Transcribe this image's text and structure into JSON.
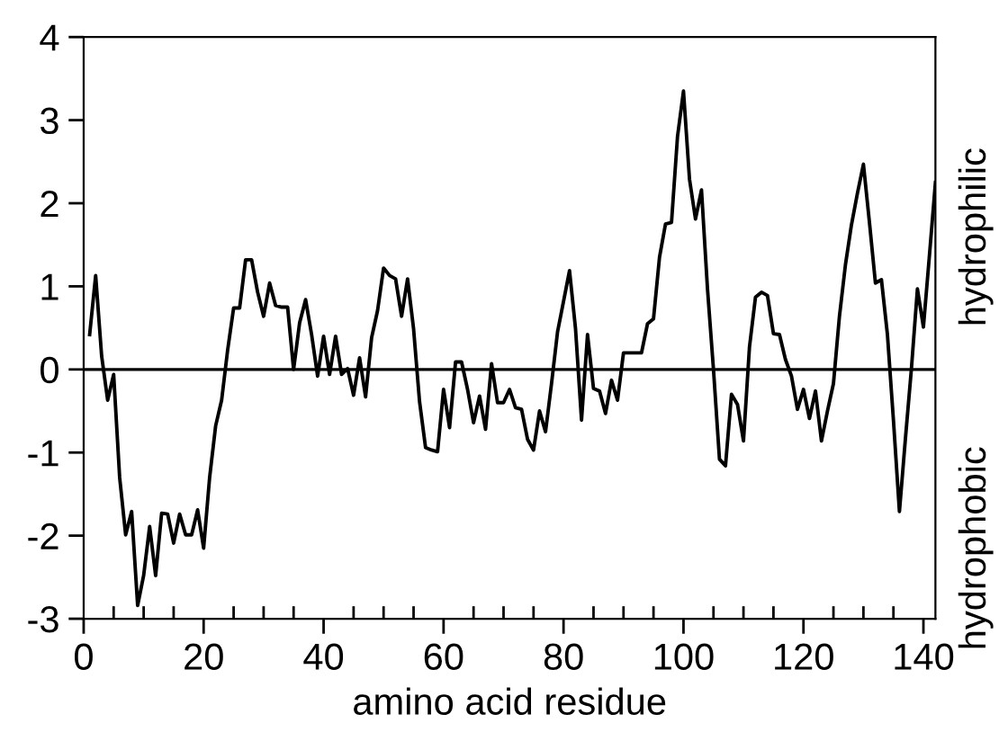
{
  "chart_data": {
    "type": "line",
    "xlabel": "amino acid residue",
    "x": [
      1,
      2,
      3,
      4,
      5,
      6,
      7,
      8,
      9,
      10,
      11,
      12,
      13,
      14,
      15,
      16,
      17,
      18,
      19,
      20,
      21,
      22,
      23,
      24,
      25,
      26,
      27,
      28,
      29,
      30,
      31,
      32,
      33,
      34,
      35,
      36,
      37,
      38,
      39,
      40,
      41,
      42,
      43,
      44,
      45,
      46,
      47,
      48,
      49,
      50,
      51,
      52,
      53,
      54,
      55,
      56,
      57,
      58,
      59,
      60,
      61,
      62,
      63,
      64,
      65,
      66,
      67,
      68,
      69,
      70,
      71,
      72,
      73,
      74,
      75,
      76,
      77,
      78,
      79,
      80,
      81,
      82,
      83,
      84,
      85,
      86,
      87,
      88,
      89,
      90,
      91,
      92,
      93,
      94,
      95,
      96,
      97,
      98,
      99,
      100,
      101,
      102,
      103,
      104,
      105,
      106,
      107,
      108,
      109,
      110,
      111,
      112,
      113,
      114,
      115,
      116,
      117,
      118,
      119,
      120,
      121,
      122,
      123,
      124,
      125,
      126,
      127,
      128,
      129,
      130,
      131,
      132,
      133,
      134,
      135,
      136,
      137,
      138,
      139,
      140,
      141,
      142
    ],
    "series": [
      {
        "color": "#000000",
        "values": [
          0.42,
          1.13,
          0.16,
          -0.37,
          -0.06,
          -1.3,
          -1.99,
          -1.71,
          -2.84,
          -2.48,
          -1.89,
          -2.48,
          -1.73,
          -1.74,
          -2.09,
          -1.74,
          -1.99,
          -1.99,
          -1.69,
          -2.15,
          -1.3,
          -0.68,
          -0.37,
          0.23,
          0.74,
          0.74,
          1.32,
          1.32,
          0.93,
          0.64,
          1.04,
          0.77,
          0.75,
          0.75,
          0.0,
          0.56,
          0.84,
          0.42,
          -0.08,
          0.4,
          -0.06,
          0.4,
          -0.06,
          0.01,
          -0.31,
          0.14,
          -0.33,
          0.38,
          0.71,
          1.22,
          1.13,
          1.09,
          0.64,
          1.09,
          0.49,
          -0.39,
          -0.94,
          -0.97,
          -0.99,
          -0.24,
          -0.7,
          0.09,
          0.09,
          -0.24,
          -0.64,
          -0.32,
          -0.72,
          0.07,
          -0.4,
          -0.4,
          -0.24,
          -0.46,
          -0.48,
          -0.84,
          -0.97,
          -0.5,
          -0.75,
          -0.17,
          0.45,
          0.82,
          1.19,
          0.49,
          -0.61,
          0.42,
          -0.23,
          -0.26,
          -0.53,
          -0.13,
          -0.37,
          0.2,
          0.2,
          0.2,
          0.2,
          0.55,
          0.61,
          1.35,
          1.75,
          1.77,
          2.8,
          3.35,
          2.29,
          1.81,
          2.16,
          0.97,
          0.0,
          -1.08,
          -1.16,
          -0.3,
          -0.42,
          -0.86,
          0.27,
          0.87,
          0.93,
          0.89,
          0.43,
          0.42,
          0.12,
          -0.08,
          -0.48,
          -0.24,
          -0.59,
          -0.26,
          -0.86,
          -0.5,
          -0.17,
          0.64,
          1.26,
          1.74,
          2.12,
          2.47,
          1.77,
          1.04,
          1.08,
          0.42,
          -0.61,
          -1.71,
          -0.83,
          0.01,
          0.97,
          0.51,
          1.37,
          2.25
        ]
      }
    ],
    "xlim": [
      0,
      142
    ],
    "ylim": [
      -3,
      4
    ],
    "xticks": [
      0,
      {
        "value": 5,
        "label": null
      },
      {
        "value": 10,
        "label": null
      },
      {
        "value": 15,
        "label": null
      },
      20,
      {
        "value": 25,
        "label": null
      },
      {
        "value": 30,
        "label": null
      },
      {
        "value": 35,
        "label": null
      },
      40,
      {
        "value": 45,
        "label": null
      },
      {
        "value": 50,
        "label": null
      },
      {
        "value": 55,
        "label": null
      },
      60,
      {
        "value": 65,
        "label": null
      },
      {
        "value": 70,
        "label": null
      },
      {
        "value": 75,
        "label": null
      },
      80,
      {
        "value": 85,
        "label": null
      },
      {
        "value": 90,
        "label": null
      },
      {
        "value": 95,
        "label": null
      },
      100,
      {
        "value": 105,
        "label": null
      },
      {
        "value": 110,
        "label": null
      },
      {
        "value": 115,
        "label": null
      },
      120,
      {
        "value": 125,
        "label": null
      },
      {
        "value": 130,
        "label": null
      },
      {
        "value": 135,
        "label": null
      },
      140
    ],
    "yticks": [
      -3,
      -2,
      -1,
      0,
      1,
      2,
      3,
      4
    ],
    "ref_lines": [
      {
        "axis": "y",
        "value": 0,
        "color": "#000000"
      }
    ],
    "annotations": [
      "hydrophilic",
      "hydrophobic"
    ],
    "grid": false,
    "legend": false,
    "marker": "none",
    "line_style": "solid"
  }
}
